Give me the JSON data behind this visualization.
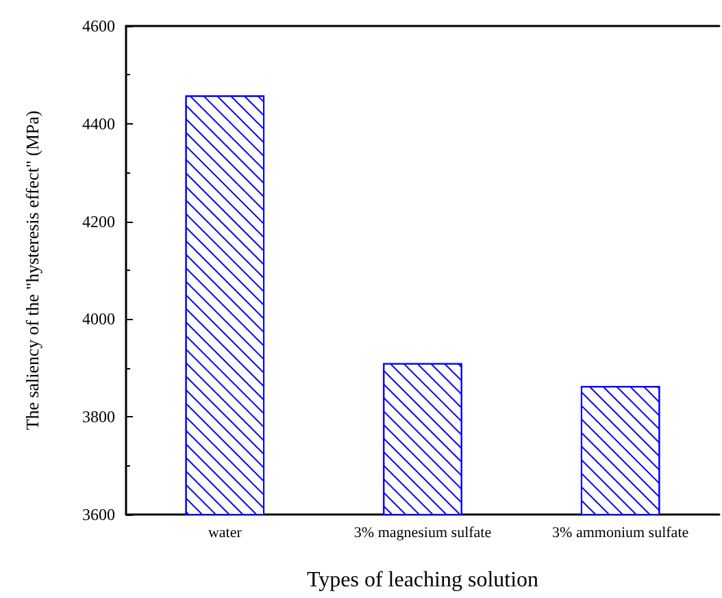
{
  "chart_data": {
    "type": "bar",
    "xlabel": "Types of leaching solution",
    "ylabel": "The saliency of the \"hysteresis effect\" (MPa)",
    "categories": [
      "water",
      "3% magnesium sulfate",
      "3% ammonium sulfate"
    ],
    "values": [
      4458,
      3910,
      3863
    ],
    "color": "#0000ff",
    "ylim": [
      3600,
      4600
    ],
    "yticks": [
      3600,
      3800,
      4000,
      4200,
      4400,
      4600
    ],
    "grid": false
  }
}
